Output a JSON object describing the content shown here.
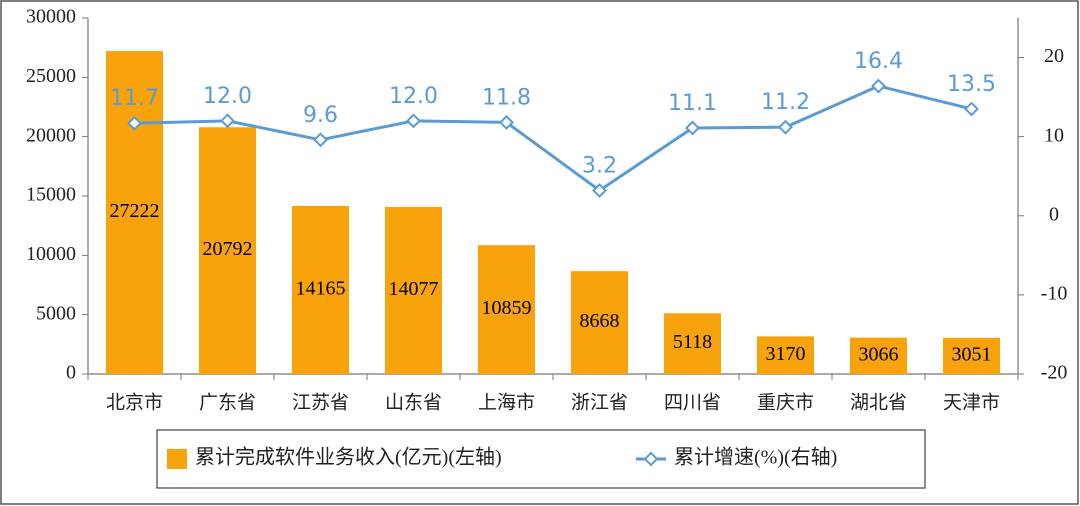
{
  "chart_data": {
    "type": "bar-line",
    "categories": [
      "北京市",
      "广东省",
      "江苏省",
      "山东省",
      "上海市",
      "浙江省",
      "四川省",
      "重庆市",
      "湖北省",
      "天津市"
    ],
    "series": [
      {
        "name": "累计完成软件业务收入(亿元)(左轴)",
        "type": "bar",
        "color": "#F8A30B",
        "values": [
          27222,
          20792,
          14165,
          14077,
          10859,
          8668,
          5118,
          3170,
          3066,
          3051
        ]
      },
      {
        "name": "累计增速(%)(右轴)",
        "type": "line",
        "axis": "y2",
        "color": "#5B9BD5",
        "values": [
          11.7,
          12.0,
          9.6,
          12.0,
          11.8,
          3.2,
          11.1,
          11.2,
          16.4,
          13.5
        ],
        "value_labels": [
          "11.7",
          "12.0",
          "9.6",
          "12.0",
          "11.8",
          "3.2",
          "11.1",
          "11.2",
          "16.4",
          "13.5"
        ]
      }
    ],
    "ylim": [
      0,
      30000
    ],
    "yticks": [
      0,
      5000,
      10000,
      15000,
      20000,
      25000,
      30000
    ],
    "y2lim": [
      -20,
      25
    ],
    "y2ticks": [
      -20,
      -10,
      0,
      10,
      20
    ],
    "legend": "bottom"
  }
}
